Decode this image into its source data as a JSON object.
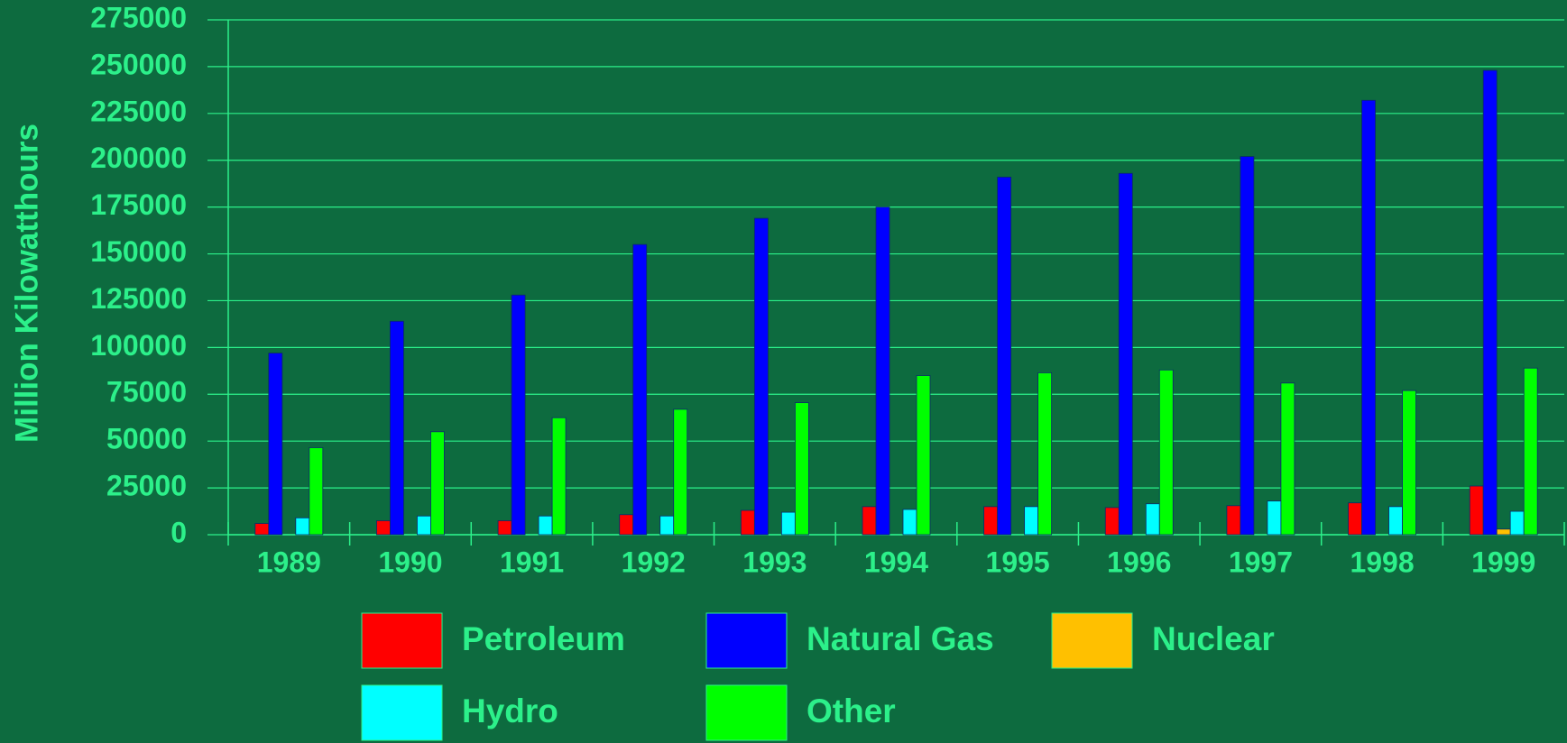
{
  "chart_data": {
    "type": "bar",
    "y_label": "Million Kilowatthours",
    "categories": [
      "1989",
      "1990",
      "1991",
      "1992",
      "1993",
      "1994",
      "1995",
      "1996",
      "1997",
      "1998",
      "1999"
    ],
    "series": [
      {
        "name": "Petroleum",
        "color": "#ff0000",
        "values": [
          6000,
          7500,
          7500,
          10700,
          13000,
          15000,
          15000,
          14500,
          15500,
          17000,
          26000
        ]
      },
      {
        "name": "Natural Gas",
        "color": "#0000ff",
        "values": [
          97000,
          114000,
          128000,
          155000,
          169000,
          175000,
          191000,
          193000,
          202000,
          232000,
          248000
        ]
      },
      {
        "name": "Nuclear",
        "color": "#ffc000",
        "values": [
          0,
          0,
          0,
          0,
          0,
          0,
          0,
          0,
          0,
          0,
          3000
        ]
      },
      {
        "name": "Hydro",
        "color": "#00ffff",
        "values": [
          9000,
          10000,
          10000,
          10000,
          12000,
          13500,
          15000,
          16500,
          18000,
          15000,
          12500
        ]
      },
      {
        "name": "Other",
        "color": "#00ff00",
        "values": [
          46500,
          55000,
          62500,
          67000,
          70500,
          85000,
          86500,
          88000,
          81000,
          77000,
          89000
        ]
      }
    ],
    "ylim": [
      0,
      275000
    ],
    "yticks": [
      0,
      25000,
      50000,
      75000,
      100000,
      125000,
      150000,
      175000,
      200000,
      225000,
      250000,
      275000
    ],
    "grid": true
  }
}
